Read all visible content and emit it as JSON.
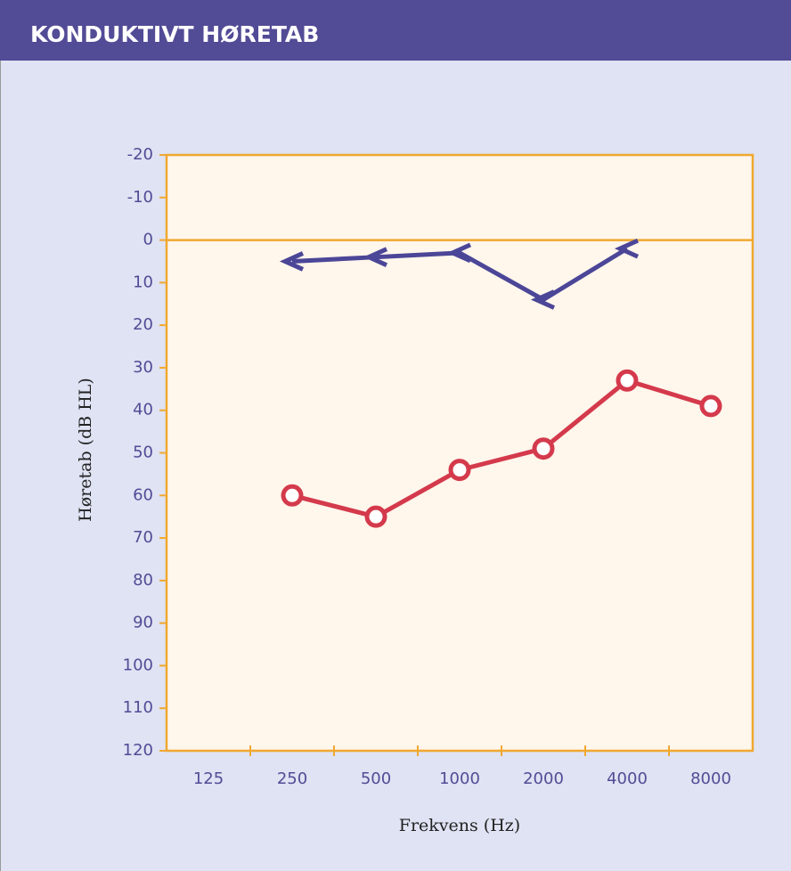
{
  "chart_data": {
    "type": "line",
    "title": "KONDUKTIVT HØRETAB",
    "ylabel": "Høretab (dB HL)",
    "xlabel": "Frekvens (Hz)",
    "categories": [
      "125",
      "250",
      "500",
      "1000",
      "2000",
      "4000",
      "8000"
    ],
    "series": [
      {
        "color": "#4b4697",
        "marker": "bracket-left",
        "values": [
          null,
          5,
          4,
          3,
          14,
          2,
          null
        ]
      },
      {
        "color": "#d43a4c",
        "marker": "circle",
        "values": [
          null,
          60,
          65,
          54,
          49,
          33,
          39
        ]
      }
    ],
    "ylim": [
      -20,
      120
    ],
    "y_inverted": true,
    "yticks": [
      -20,
      -10,
      0,
      10,
      20,
      30,
      40,
      50,
      60,
      70,
      80,
      90,
      100,
      110,
      120
    ],
    "zero_line": true
  }
}
